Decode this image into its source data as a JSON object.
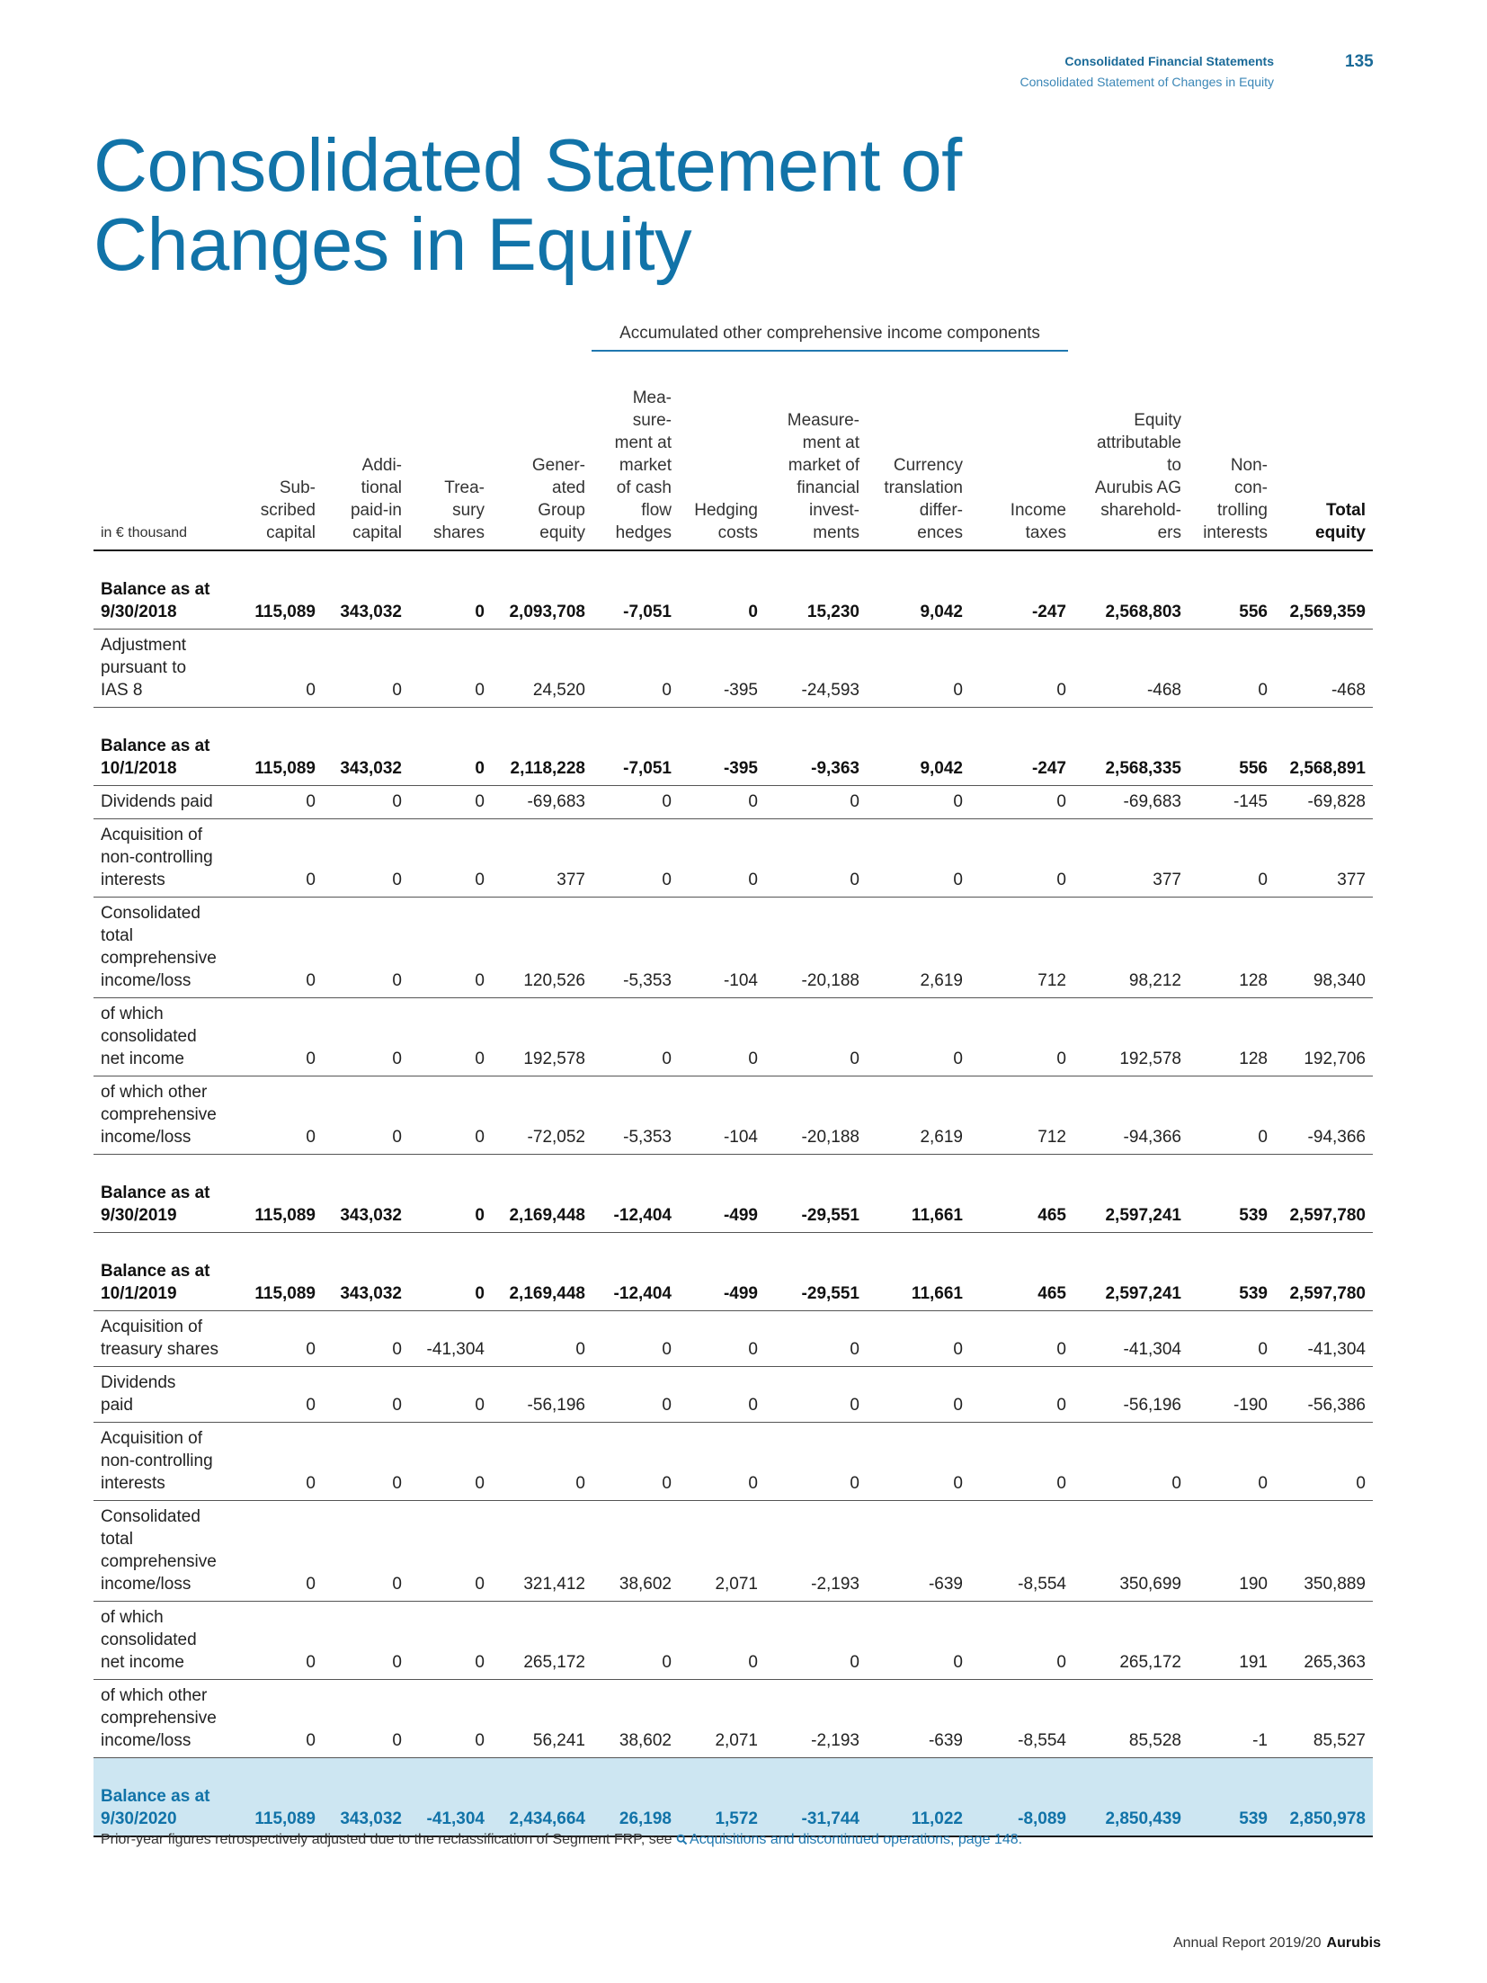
{
  "header": {
    "section": "Consolidated Financial Statements",
    "subsection": "Consolidated Statement of Changes in Equity",
    "page_number": "135"
  },
  "title": {
    "line1": "Consolidated Statement of",
    "line2": "Changes in Equity"
  },
  "aoci_heading": "Accumulated other comprehensive income components",
  "table": {
    "columns": [
      "in € thousand",
      "Sub-\nscribed\ncapital",
      "Addi-\ntional\npaid-in\ncapital",
      "Trea-\nsury\nshares",
      "Gener-\nated\nGroup\nequity",
      "Mea-\nsure-\nment at\nmarket\nof cash\nflow\nhedges",
      "Hedging\ncosts",
      "Measure-\nment at\nmarket of\nfinancial\ninvest-\nments",
      "Currency\ntranslation\ndiffer-\nences",
      "Income\ntaxes",
      "Equity\nattributable\nto\nAurubis AG\nsharehold-\ners",
      "Non-\ncon-\ntrolling\ninterests",
      "Total\nequity"
    ],
    "rows": [
      {
        "type": "balance",
        "label": "Balance as at\n9/30/2018",
        "values": [
          "115,089",
          "343,032",
          "0",
          "2,093,708",
          "-7,051",
          "0",
          "15,230",
          "9,042",
          "-247",
          "2,568,803",
          "556",
          "2,569,359"
        ]
      },
      {
        "type": "normal",
        "label": "Adjustment\npursuant to\nIAS 8",
        "values": [
          "0",
          "0",
          "0",
          "24,520",
          "0",
          "-395",
          "-24,593",
          "0",
          "0",
          "-468",
          "0",
          "-468"
        ]
      },
      {
        "type": "balance",
        "label": "Balance as at\n10/1/2018",
        "values": [
          "115,089",
          "343,032",
          "0",
          "2,118,228",
          "-7,051",
          "-395",
          "-9,363",
          "9,042",
          "-247",
          "2,568,335",
          "556",
          "2,568,891"
        ]
      },
      {
        "type": "normal",
        "label": "Dividends paid",
        "values": [
          "0",
          "0",
          "0",
          "-69,683",
          "0",
          "0",
          "0",
          "0",
          "0",
          "-69,683",
          "-145",
          "-69,828"
        ]
      },
      {
        "type": "normal",
        "label": "Acquisition of\nnon-controlling\ninterests",
        "values": [
          "0",
          "0",
          "0",
          "377",
          "0",
          "0",
          "0",
          "0",
          "0",
          "377",
          "0",
          "377"
        ]
      },
      {
        "type": "normal",
        "label": "Consolidated\ntotal\ncomprehensive\nincome/loss",
        "values": [
          "0",
          "0",
          "0",
          "120,526",
          "-5,353",
          "-104",
          "-20,188",
          "2,619",
          "712",
          "98,212",
          "128",
          "98,340"
        ]
      },
      {
        "type": "normal",
        "label": "of which\nconsolidated\nnet income",
        "values": [
          "0",
          "0",
          "0",
          "192,578",
          "0",
          "0",
          "0",
          "0",
          "0",
          "192,578",
          "128",
          "192,706"
        ]
      },
      {
        "type": "normal",
        "label": "of which other\ncomprehensive\nincome/loss",
        "values": [
          "0",
          "0",
          "0",
          "-72,052",
          "-5,353",
          "-104",
          "-20,188",
          "2,619",
          "712",
          "-94,366",
          "0",
          "-94,366"
        ]
      },
      {
        "type": "balance",
        "label": "Balance as at\n9/30/2019",
        "values": [
          "115,089",
          "343,032",
          "0",
          "2,169,448",
          "-12,404",
          "-499",
          "-29,551",
          "11,661",
          "465",
          "2,597,241",
          "539",
          "2,597,780"
        ]
      },
      {
        "type": "balance",
        "label": "Balance as at\n10/1/2019",
        "values": [
          "115,089",
          "343,032",
          "0",
          "2,169,448",
          "-12,404",
          "-499",
          "-29,551",
          "11,661",
          "465",
          "2,597,241",
          "539",
          "2,597,780"
        ]
      },
      {
        "type": "normal",
        "label": "Acquisition of\ntreasury shares",
        "values": [
          "0",
          "0",
          "-41,304",
          "0",
          "0",
          "0",
          "0",
          "0",
          "0",
          "-41,304",
          "0",
          "-41,304"
        ]
      },
      {
        "type": "normal",
        "label": "Dividends\npaid",
        "values": [
          "0",
          "0",
          "0",
          "-56,196",
          "0",
          "0",
          "0",
          "0",
          "0",
          "-56,196",
          "-190",
          "-56,386"
        ]
      },
      {
        "type": "normal",
        "label": "Acquisition of\nnon-controlling\ninterests",
        "values": [
          "0",
          "0",
          "0",
          "0",
          "0",
          "0",
          "0",
          "0",
          "0",
          "0",
          "0",
          "0"
        ]
      },
      {
        "type": "normal",
        "label": "Consolidated\ntotal\ncomprehensive\nincome/loss",
        "values": [
          "0",
          "0",
          "0",
          "321,412",
          "38,602",
          "2,071",
          "-2,193",
          "-639",
          "-8,554",
          "350,699",
          "190",
          "350,889"
        ]
      },
      {
        "type": "normal",
        "label": "of which\nconsolidated\nnet income",
        "values": [
          "0",
          "0",
          "0",
          "265,172",
          "0",
          "0",
          "0",
          "0",
          "0",
          "265,172",
          "191",
          "265,363"
        ]
      },
      {
        "type": "normal",
        "label": "of which other\ncomprehensive\nincome/loss",
        "values": [
          "0",
          "0",
          "0",
          "56,241",
          "38,602",
          "2,071",
          "-2,193",
          "-639",
          "-8,554",
          "85,528",
          "-1",
          "85,527"
        ]
      },
      {
        "type": "final",
        "label": "Balance as at\n9/30/2020",
        "values": [
          "115,089",
          "343,032",
          "-41,304",
          "2,434,664",
          "26,198",
          "1,572",
          "-31,744",
          "11,022",
          "-8,089",
          "2,850,439",
          "539",
          "2,850,978"
        ]
      }
    ]
  },
  "note": {
    "text": "Prior-year figures retrospectively adjusted due to the reclassification of Segment FRP, see ",
    "link": "Acquisitions and discontinued operations, page 148."
  },
  "footer": {
    "report": "Annual Report 2019/20",
    "brand": "Aurubis"
  },
  "colors": {
    "accent": "#1173a8",
    "highlight_row": "#cde6f2"
  },
  "icons": {
    "note_link": "magnifier-icon"
  }
}
